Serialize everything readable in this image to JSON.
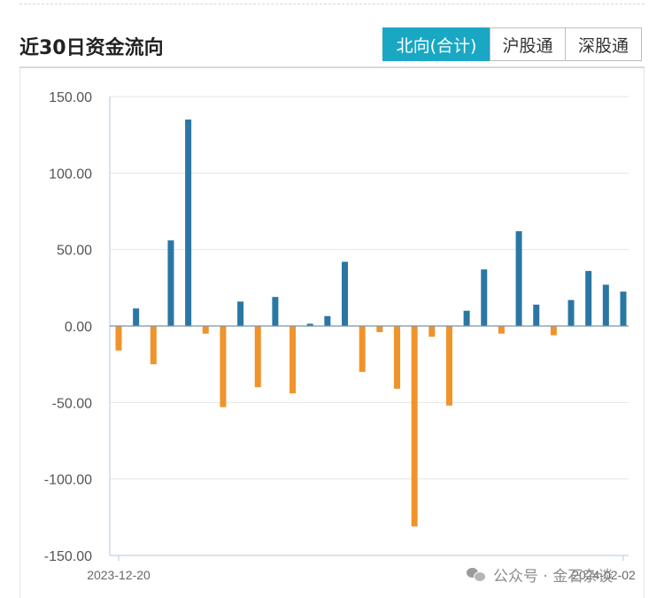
{
  "header": {
    "title": "近30日资金流向",
    "tabs": [
      {
        "label": "北向(合计)",
        "active": true
      },
      {
        "label": "沪股通",
        "active": false
      },
      {
        "label": "深股通",
        "active": false
      }
    ]
  },
  "watermark": {
    "text": "公众号 · 金石杂谈",
    "icon": "wechat-icon"
  },
  "colors": {
    "positive": "#2a77a3",
    "negative": "#f0932b",
    "tab_active": "#1aa7c4",
    "grid": "#e6e6e6",
    "axis": "#b8c7d9"
  },
  "chart_data": {
    "type": "bar",
    "title": "近30日资金流向",
    "xlabel": "",
    "ylabel": "",
    "ylim": [
      -150,
      150
    ],
    "yticks": [
      150,
      100,
      50,
      0,
      -50,
      -100,
      -150
    ],
    "ytick_labels": [
      "150.00",
      "100.00",
      "50.00",
      "0.00",
      "-50.00",
      "-100.00",
      "-150.00"
    ],
    "x_labels_shown": [
      "2023-12-20",
      "2024-02-02"
    ],
    "values": [
      -16,
      11.5,
      -25,
      56,
      135,
      -5,
      -53,
      16,
      -40,
      19,
      -44,
      1.5,
      6.5,
      42,
      -30,
      -4,
      -41,
      -131,
      -7,
      -52,
      10,
      37,
      -5,
      62,
      14,
      -6,
      17,
      36,
      27,
      22.5
    ],
    "legend": "none",
    "grid": true
  }
}
